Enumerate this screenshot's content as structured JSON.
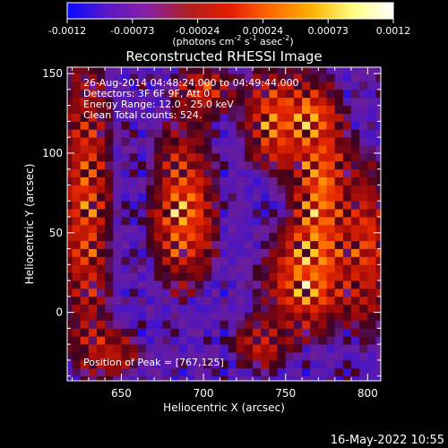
{
  "colorbar": {
    "ticks": [
      "-0.0012",
      "-0.00073",
      "-0.00024",
      "0.00024",
      "0.00073",
      "0.0012"
    ],
    "units_main": "(photons cm",
    "units_exp1": "-2",
    "units_mid1": " s",
    "units_exp2": "-1",
    "units_mid2": " asec",
    "units_exp3": "-2",
    "units_end": ")",
    "colors": [
      "#0a0aff",
      "#5a18c8",
      "#8a1fa0",
      "#b01f1f",
      "#e61c00",
      "#ff6a00",
      "#ffb000",
      "#ffff80",
      "#ffffff"
    ]
  },
  "plot": {
    "title": "Reconstructed RHESSI Image",
    "xlabel": "Heliocentric X (arcsec)",
    "ylabel": "Heliocentric Y (arcsec)",
    "info_lines": [
      "26-Aug-2014 04:48:24.000 to 04:49:44.000",
      "Detectors: 3F 6F 9F, Att 0",
      "Energy Range: 12.0 - 25.0 keV",
      "Clean    Total counts: 524."
    ],
    "peak_text": "Position of Peak = [767,125]"
  },
  "footer": {
    "timestamp": "16-May-2022 10:55"
  },
  "chart_data": {
    "type": "heatmap",
    "title": "Reconstructed RHESSI Image",
    "xlabel": "Heliocentric X (arcsec)",
    "ylabel": "Heliocentric Y (arcsec)",
    "xlim": [
      617,
      808
    ],
    "ylim": [
      -43,
      154
    ],
    "x_ticks": [
      650,
      700,
      750,
      800
    ],
    "y_ticks": [
      0,
      50,
      100,
      150
    ],
    "colorbar_range": [
      -0.0012,
      0.0012
    ],
    "peak_position": [
      767,
      125
    ],
    "pixel_size": 5,
    "sources": [
      {
        "x": 688,
        "y": 65,
        "sx": 12,
        "sy": 30,
        "amp": 1.0
      },
      {
        "x": 745,
        "y": 120,
        "sx": 12,
        "sy": 20,
        "amp": 0.95
      },
      {
        "x": 767,
        "y": 125,
        "sx": 8,
        "sy": 8,
        "amp": 0.5
      },
      {
        "x": 772,
        "y": 75,
        "sx": 10,
        "sy": 40,
        "amp": 1.0
      },
      {
        "x": 760,
        "y": 22,
        "sx": 15,
        "sy": 20,
        "amp": 0.9
      },
      {
        "x": 800,
        "y": 40,
        "sx": 8,
        "sy": 35,
        "amp": 0.75
      },
      {
        "x": 628,
        "y": 70,
        "sx": 10,
        "sy": 60,
        "amp": 0.8
      },
      {
        "x": 700,
        "y": 140,
        "sx": 12,
        "sy": 10,
        "amp": 0.7
      },
      {
        "x": 645,
        "y": -25,
        "sx": 12,
        "sy": 10,
        "amp": 0.55
      },
      {
        "x": 735,
        "y": -20,
        "sx": 12,
        "sy": 12,
        "amp": 0.5
      }
    ]
  }
}
